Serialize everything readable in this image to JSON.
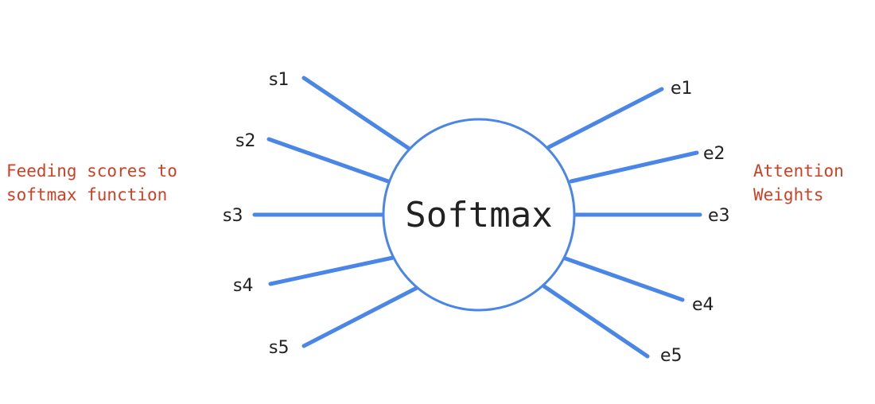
{
  "diagram": {
    "center_label": "Softmax",
    "inputs": [
      "s1",
      "s2",
      "s3",
      "s4",
      "s5"
    ],
    "outputs": [
      "e1",
      "e2",
      "e3",
      "e4",
      "e5"
    ],
    "left_note": [
      "Feeding scores to",
      "softmax function"
    ],
    "right_note": [
      "Attention",
      "Weights"
    ],
    "colors": {
      "line": "#4a86e8",
      "note": "#cc4125"
    }
  }
}
